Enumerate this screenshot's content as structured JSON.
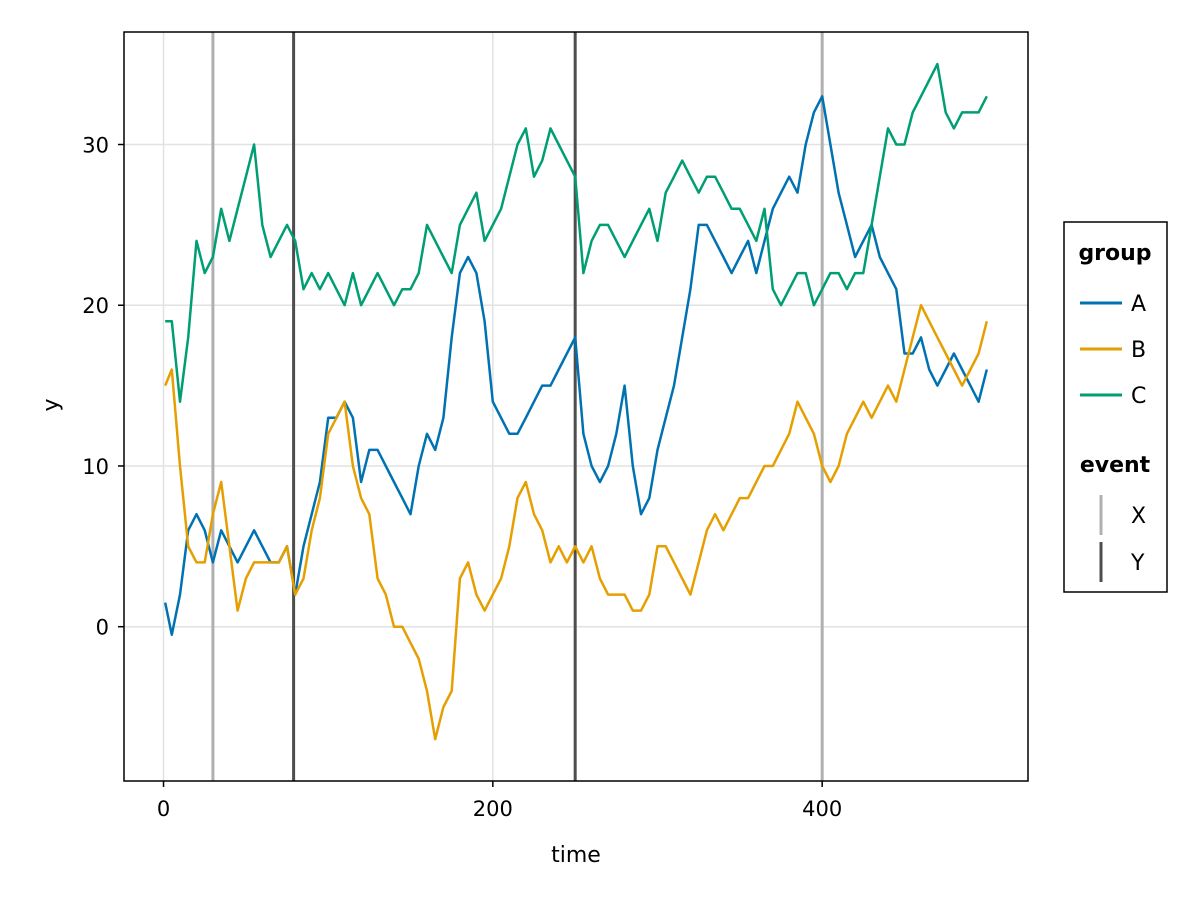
{
  "chart_data": {
    "type": "line",
    "title": "",
    "xlabel": "time",
    "ylabel": "y",
    "xlim": [
      -24,
      525
    ],
    "ylim": [
      -9.6,
      37
    ],
    "xticks": [
      0,
      200,
      400
    ],
    "yticks": [
      0,
      10,
      20,
      30
    ],
    "grid": true,
    "legend_position": "right",
    "legend_groups": [
      {
        "title": "group",
        "entries": [
          "A",
          "B",
          "C"
        ]
      },
      {
        "title": "event",
        "entries": [
          "X",
          "Y"
        ]
      }
    ],
    "events": [
      {
        "name": "X",
        "x": 30,
        "color": "#b0b0b0"
      },
      {
        "name": "Y",
        "x": 79,
        "color": "#4d4d4d"
      },
      {
        "name": "Y",
        "x": 250,
        "color": "#4d4d4d"
      },
      {
        "name": "X",
        "x": 400,
        "color": "#b0b0b0"
      }
    ],
    "series": [
      {
        "name": "A",
        "color": "#0072b2",
        "x": [
          1,
          5,
          10,
          15,
          20,
          25,
          30,
          35,
          40,
          45,
          50,
          55,
          60,
          65,
          70,
          75,
          80,
          85,
          90,
          95,
          100,
          105,
          110,
          115,
          120,
          125,
          130,
          135,
          140,
          145,
          150,
          155,
          160,
          165,
          170,
          175,
          180,
          185,
          190,
          195,
          200,
          205,
          210,
          215,
          220,
          225,
          230,
          235,
          240,
          245,
          250,
          255,
          260,
          265,
          270,
          275,
          280,
          285,
          290,
          295,
          300,
          305,
          310,
          315,
          320,
          325,
          330,
          335,
          340,
          345,
          350,
          355,
          360,
          365,
          370,
          375,
          380,
          385,
          390,
          395,
          400,
          405,
          410,
          415,
          420,
          425,
          430,
          435,
          440,
          445,
          450,
          455,
          460,
          465,
          470,
          475,
          480,
          485,
          490,
          495,
          500
        ],
        "values": [
          1.5,
          -0.5,
          2,
          6,
          7,
          6,
          4,
          6,
          5,
          4,
          5,
          6,
          5,
          4,
          4,
          5,
          2,
          5,
          7,
          9,
          13,
          13,
          14,
          13,
          9,
          11,
          11,
          10,
          9,
          8,
          7,
          10,
          12,
          11,
          13,
          18,
          22,
          23,
          22,
          19,
          14,
          13,
          12,
          12,
          13,
          14,
          15,
          15,
          16,
          17,
          18,
          12,
          10,
          9,
          10,
          12,
          15,
          10,
          7,
          8,
          11,
          13,
          15,
          18,
          21,
          25,
          25,
          24,
          23,
          22,
          23,
          24,
          22,
          24,
          26,
          27,
          28,
          27,
          30,
          32,
          33,
          30,
          27,
          25,
          23,
          24,
          25,
          23,
          22,
          21,
          17,
          17,
          18,
          16,
          15,
          16,
          17,
          16,
          15,
          14,
          16
        ]
      },
      {
        "name": "B",
        "color": "#e69f00",
        "x": [
          1,
          5,
          10,
          15,
          20,
          25,
          30,
          35,
          40,
          45,
          50,
          55,
          60,
          65,
          70,
          75,
          80,
          85,
          90,
          95,
          100,
          105,
          110,
          115,
          120,
          125,
          130,
          135,
          140,
          145,
          150,
          155,
          160,
          165,
          170,
          175,
          180,
          185,
          190,
          195,
          200,
          205,
          210,
          215,
          220,
          225,
          230,
          235,
          240,
          245,
          250,
          255,
          260,
          265,
          270,
          275,
          280,
          285,
          290,
          295,
          300,
          305,
          310,
          315,
          320,
          325,
          330,
          335,
          340,
          345,
          350,
          355,
          360,
          365,
          370,
          375,
          380,
          385,
          390,
          395,
          400,
          405,
          410,
          415,
          420,
          425,
          430,
          435,
          440,
          445,
          450,
          455,
          460,
          465,
          470,
          475,
          480,
          485,
          490,
          495,
          500
        ],
        "values": [
          15,
          16,
          10,
          5,
          4,
          4,
          7,
          9,
          5,
          1,
          3,
          4,
          4,
          4,
          4,
          5,
          2,
          3,
          6,
          8,
          12,
          13,
          14,
          10,
          8,
          7,
          3,
          2,
          0,
          0,
          -1,
          -2,
          -4,
          -7,
          -5,
          -4,
          3,
          4,
          2,
          1,
          2,
          3,
          5,
          8,
          9,
          7,
          6,
          4,
          5,
          4,
          5,
          4,
          5,
          3,
          2,
          2,
          2,
          1,
          1,
          2,
          5,
          5,
          4,
          3,
          2,
          4,
          6,
          7,
          6,
          7,
          8,
          8,
          9,
          10,
          10,
          11,
          12,
          14,
          13,
          12,
          10,
          9,
          10,
          12,
          13,
          14,
          13,
          14,
          15,
          14,
          16,
          18,
          20,
          19,
          18,
          17,
          16,
          15,
          16,
          17,
          19
        ]
      },
      {
        "name": "C",
        "color": "#009e73",
        "x": [
          1,
          5,
          10,
          15,
          20,
          25,
          30,
          35,
          40,
          45,
          50,
          55,
          60,
          65,
          70,
          75,
          80,
          85,
          90,
          95,
          100,
          105,
          110,
          115,
          120,
          125,
          130,
          135,
          140,
          145,
          150,
          155,
          160,
          165,
          170,
          175,
          180,
          185,
          190,
          195,
          200,
          205,
          210,
          215,
          220,
          225,
          230,
          235,
          240,
          245,
          250,
          255,
          260,
          265,
          270,
          275,
          280,
          285,
          290,
          295,
          300,
          305,
          310,
          315,
          320,
          325,
          330,
          335,
          340,
          345,
          350,
          355,
          360,
          365,
          370,
          375,
          380,
          385,
          390,
          395,
          400,
          405,
          410,
          415,
          420,
          425,
          430,
          435,
          440,
          445,
          450,
          455,
          460,
          465,
          470,
          475,
          480,
          485,
          490,
          495,
          500
        ],
        "values": [
          19,
          19,
          14,
          18,
          24,
          22,
          23,
          26,
          24,
          26,
          28,
          30,
          25,
          23,
          24,
          25,
          24,
          21,
          22,
          21,
          22,
          21,
          20,
          22,
          20,
          21,
          22,
          21,
          20,
          21,
          21,
          22,
          25,
          24,
          23,
          22,
          25,
          26,
          27,
          24,
          25,
          26,
          28,
          30,
          31,
          28,
          29,
          31,
          30,
          29,
          28,
          22,
          24,
          25,
          25,
          24,
          23,
          24,
          25,
          26,
          24,
          27,
          28,
          29,
          28,
          27,
          28,
          28,
          27,
          26,
          26,
          25,
          24,
          26,
          21,
          20,
          21,
          22,
          22,
          20,
          21,
          22,
          22,
          21,
          22,
          22,
          25,
          28,
          31,
          30,
          30,
          32,
          33,
          34,
          35,
          32,
          31,
          32,
          32,
          32,
          33
        ]
      }
    ]
  }
}
